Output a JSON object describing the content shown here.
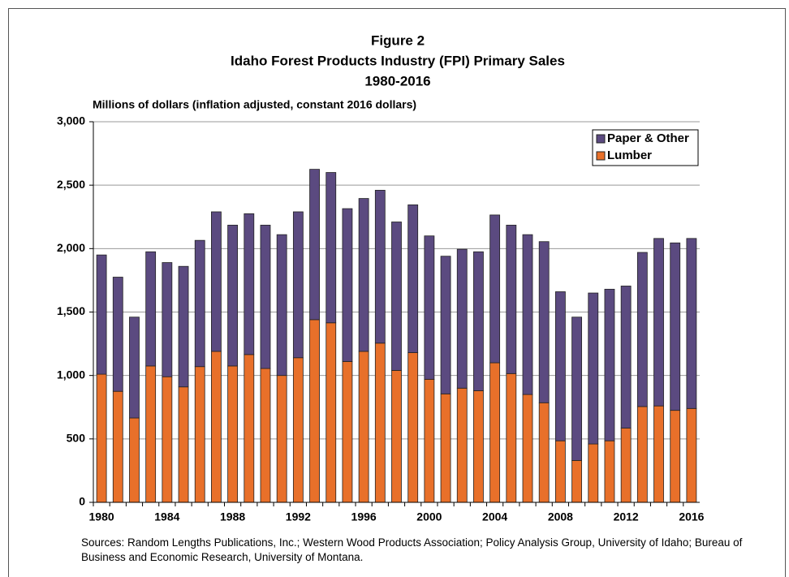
{
  "chart_data": {
    "type": "stacked-bar",
    "title": "Figure 2",
    "subtitle": "Idaho Forest Products Industry (FPI) Primary Sales",
    "period": "1980-2016",
    "y_label": "Millions of dollars (inflation adjusted, constant 2016 dollars)",
    "source": "Sources: Random Lengths Publications, Inc.; Western Wood Products Association; Policy Analysis Group, University of Idaho; Bureau of Business and Economic Research, University of Montana.",
    "categories": [
      "1980",
      null,
      null,
      null,
      "1984",
      null,
      null,
      null,
      "1988",
      null,
      null,
      null,
      "1992",
      null,
      null,
      null,
      "1996",
      null,
      null,
      null,
      "2000",
      null,
      null,
      null,
      "2004",
      null,
      null,
      null,
      "2008",
      null,
      null,
      null,
      "2012",
      null,
      null,
      null,
      "2016"
    ],
    "series": [
      {
        "name": "Paper & Other",
        "color": "#5b4a80",
        "values": [
          940,
          900,
          795,
          900,
          900,
          950,
          995,
          1100,
          1110,
          1110,
          1130,
          1110,
          1150,
          1185,
          1185,
          1205,
          1205,
          1205,
          1170,
          1165,
          1130,
          1085,
          1095,
          1095,
          1165,
          1170,
          1260,
          1270,
          1175,
          1130,
          1190,
          1195,
          1120,
          1215,
          1320,
          1320,
          1340
        ]
      },
      {
        "name": "Lumber",
        "color": "#e8702a",
        "values": [
          1010,
          875,
          665,
          1075,
          990,
          910,
          1070,
          1190,
          1075,
          1165,
          1055,
          1000,
          1140,
          1440,
          1415,
          1110,
          1190,
          1255,
          1040,
          1180,
          970,
          855,
          900,
          880,
          1100,
          1015,
          850,
          785,
          485,
          330,
          460,
          485,
          585,
          755,
          760,
          725,
          740
        ]
      }
    ],
    "ylim": [
      0,
      3000
    ],
    "yticks": [
      0,
      500,
      {
        "value": 1000,
        "label": "1,000"
      },
      {
        "value": 1500,
        "label": "1,500"
      },
      {
        "value": 2000,
        "label": "2,000"
      },
      {
        "value": 2500,
        "label": "2,500"
      },
      {
        "value": 3000,
        "label": "3,000"
      }
    ],
    "grid": true,
    "legend": "upper right"
  }
}
